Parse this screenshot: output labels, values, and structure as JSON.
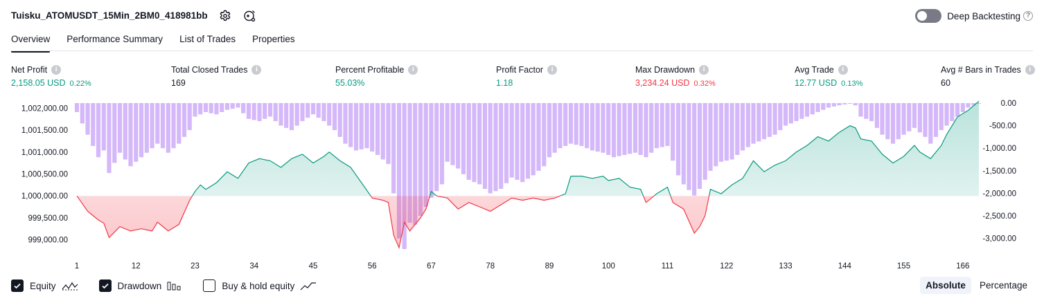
{
  "header": {
    "strategy_name": "Tuisku_ATOMUSDT_15Min_2BM0_418981bb",
    "deep_backtesting_label": "Deep Backtesting",
    "help_glyph": "?"
  },
  "tabs": [
    {
      "label": "Overview",
      "active": true
    },
    {
      "label": "Performance Summary",
      "active": false
    },
    {
      "label": "List of Trades",
      "active": false
    },
    {
      "label": "Properties",
      "active": false
    }
  ],
  "metrics": [
    {
      "label": "Net Profit",
      "value": "2,158.05 USD",
      "pct": "0.22%",
      "color": "#089981"
    },
    {
      "label": "Total Closed Trades",
      "value": "169",
      "pct": "",
      "color": "#131722"
    },
    {
      "label": "Percent Profitable",
      "value": "55.03%",
      "pct": "",
      "color": "#089981"
    },
    {
      "label": "Profit Factor",
      "value": "1.18",
      "pct": "",
      "color": "#089981"
    },
    {
      "label": "Max Drawdown",
      "value": "3,234.24 USD",
      "pct": "0.32%",
      "color": "#f23645"
    },
    {
      "label": "Avg Trade",
      "value": "12.77 USD",
      "pct": "0.13%",
      "color": "#089981"
    },
    {
      "label": "Avg # Bars in Trades",
      "value": "60",
      "pct": "",
      "color": "#131722"
    }
  ],
  "info_glyph": "i",
  "chart_data": {
    "type": "line",
    "x_ticks": [
      "1",
      "12",
      "23",
      "34",
      "45",
      "56",
      "67",
      "78",
      "89",
      "100",
      "111",
      "122",
      "133",
      "144",
      "155",
      "166"
    ],
    "x_range": [
      1,
      169
    ],
    "left_axis": {
      "ticks": [
        "1,002,000.00",
        "1,001,500.00",
        "1,001,000.00",
        "1,000,500.00",
        "1,000,000.00",
        "999,500.00",
        "999,000.00"
      ],
      "range": [
        998820,
        1002100
      ],
      "baseline": 1000000
    },
    "right_axis": {
      "ticks": [
        "0.00",
        "-500.00",
        "-1,000.00",
        "-1,500.00",
        "-2,000.00",
        "-2,500.00",
        "-3,000.00"
      ],
      "range": [
        -3234.24,
        0
      ]
    },
    "equity": {
      "name": "Equity",
      "positive_color": "#089981",
      "negative_color": "#f23645",
      "anchors": [
        [
          1,
          1000000
        ],
        [
          3,
          999650
        ],
        [
          5,
          999450
        ],
        [
          6,
          999380
        ],
        [
          7,
          999050
        ],
        [
          9,
          999300
        ],
        [
          11,
          999200
        ],
        [
          13,
          999250
        ],
        [
          15,
          999200
        ],
        [
          16,
          999400
        ],
        [
          18,
          999200
        ],
        [
          20,
          999350
        ],
        [
          22,
          999900
        ],
        [
          23,
          1000100
        ],
        [
          24,
          1000250
        ],
        [
          25,
          1000150
        ],
        [
          27,
          1000300
        ],
        [
          29,
          1000550
        ],
        [
          31,
          1000400
        ],
        [
          33,
          1000750
        ],
        [
          35,
          1000850
        ],
        [
          37,
          1000800
        ],
        [
          39,
          1000650
        ],
        [
          41,
          1000850
        ],
        [
          43,
          1000950
        ],
        [
          45,
          1000750
        ],
        [
          47,
          1000900
        ],
        [
          48,
          1001000
        ],
        [
          50,
          1000800
        ],
        [
          52,
          1000650
        ],
        [
          54,
          1000300
        ],
        [
          56,
          999950
        ],
        [
          58,
          999900
        ],
        [
          59,
          999850
        ],
        [
          60,
          999100
        ],
        [
          61,
          998820
        ],
        [
          62,
          999400
        ],
        [
          63,
          999200
        ],
        [
          65,
          999500
        ],
        [
          66,
          999700
        ],
        [
          67,
          1000100
        ],
        [
          68,
          1000000
        ],
        [
          70,
          999950
        ],
        [
          72,
          999700
        ],
        [
          74,
          999850
        ],
        [
          76,
          999750
        ],
        [
          78,
          999650
        ],
        [
          80,
          999800
        ],
        [
          82,
          999950
        ],
        [
          84,
          999900
        ],
        [
          86,
          999950
        ],
        [
          88,
          999900
        ],
        [
          90,
          999950
        ],
        [
          92,
          1000050
        ],
        [
          93,
          1000450
        ],
        [
          95,
          1000450
        ],
        [
          97,
          1000400
        ],
        [
          99,
          1000450
        ],
        [
          100,
          1000350
        ],
        [
          102,
          1000400
        ],
        [
          104,
          1000200
        ],
        [
          106,
          1000150
        ],
        [
          107,
          999850
        ],
        [
          109,
          1000050
        ],
        [
          111,
          1000200
        ],
        [
          112,
          999850
        ],
        [
          114,
          999700
        ],
        [
          116,
          999150
        ],
        [
          117,
          999300
        ],
        [
          118,
          999550
        ],
        [
          119,
          1000150
        ],
        [
          121,
          1000050
        ],
        [
          123,
          1000250
        ],
        [
          125,
          1000400
        ],
        [
          127,
          1000800
        ],
        [
          129,
          1000550
        ],
        [
          131,
          1000700
        ],
        [
          133,
          1000800
        ],
        [
          135,
          1001000
        ],
        [
          137,
          1001150
        ],
        [
          139,
          1001350
        ],
        [
          141,
          1001250
        ],
        [
          143,
          1001450
        ],
        [
          145,
          1001600
        ],
        [
          146,
          1001550
        ],
        [
          147,
          1001300
        ],
        [
          149,
          1001250
        ],
        [
          151,
          1000950
        ],
        [
          153,
          1000750
        ],
        [
          155,
          1000900
        ],
        [
          157,
          1001150
        ],
        [
          158,
          1001000
        ],
        [
          160,
          1000850
        ],
        [
          162,
          1001150
        ],
        [
          163,
          1001400
        ],
        [
          165,
          1001800
        ],
        [
          167,
          1001950
        ],
        [
          169,
          1002158
        ]
      ]
    },
    "drawdown": {
      "name": "Drawdown",
      "color": "#c49cf6",
      "anchors": [
        [
          1,
          -200
        ],
        [
          3,
          -700
        ],
        [
          5,
          -1200
        ],
        [
          6,
          -1050
        ],
        [
          7,
          -1550
        ],
        [
          9,
          -1100
        ],
        [
          11,
          -1400
        ],
        [
          13,
          -1200
        ],
        [
          16,
          -900
        ],
        [
          18,
          -1100
        ],
        [
          20,
          -900
        ],
        [
          22,
          -600
        ],
        [
          23,
          -300
        ],
        [
          25,
          -200
        ],
        [
          27,
          -250
        ],
        [
          29,
          -150
        ],
        [
          31,
          -100
        ],
        [
          33,
          -350
        ],
        [
          35,
          -400
        ],
        [
          37,
          -300
        ],
        [
          39,
          -500
        ],
        [
          41,
          -600
        ],
        [
          43,
          -400
        ],
        [
          45,
          -250
        ],
        [
          47,
          -400
        ],
        [
          49,
          -600
        ],
        [
          51,
          -900
        ],
        [
          53,
          -1050
        ],
        [
          55,
          -1000
        ],
        [
          57,
          -1150
        ],
        [
          59,
          -1350
        ],
        [
          60,
          -2000
        ],
        [
          61,
          -3000
        ],
        [
          62,
          -3234
        ],
        [
          63,
          -2650
        ],
        [
          64,
          -2700
        ],
        [
          66,
          -2300
        ],
        [
          67,
          -2100
        ],
        [
          69,
          -1800
        ],
        [
          70,
          -1300
        ],
        [
          72,
          -1450
        ],
        [
          74,
          -1700
        ],
        [
          76,
          -1800
        ],
        [
          78,
          -2000
        ],
        [
          80,
          -1900
        ],
        [
          82,
          -1650
        ],
        [
          84,
          -1750
        ],
        [
          86,
          -1600
        ],
        [
          88,
          -1400
        ],
        [
          89,
          -1200
        ],
        [
          91,
          -1000
        ],
        [
          93,
          -900
        ],
        [
          95,
          -950
        ],
        [
          97,
          -1050
        ],
        [
          99,
          -1100
        ],
        [
          101,
          -1200
        ],
        [
          103,
          -1150
        ],
        [
          105,
          -1100
        ],
        [
          107,
          -1200
        ],
        [
          109,
          -1000
        ],
        [
          111,
          -950
        ],
        [
          113,
          -1600
        ],
        [
          114,
          -1800
        ],
        [
          116,
          -2050
        ],
        [
          117,
          -1900
        ],
        [
          119,
          -1500
        ],
        [
          121,
          -1300
        ],
        [
          123,
          -1250
        ],
        [
          125,
          -1050
        ],
        [
          127,
          -900
        ],
        [
          129,
          -800
        ],
        [
          131,
          -700
        ],
        [
          133,
          -500
        ],
        [
          135,
          -400
        ],
        [
          137,
          -300
        ],
        [
          139,
          -200
        ],
        [
          141,
          -100
        ],
        [
          143,
          -50
        ],
        [
          145,
          -10
        ],
        [
          146,
          -50
        ],
        [
          147,
          -300
        ],
        [
          149,
          -400
        ],
        [
          151,
          -700
        ],
        [
          153,
          -900
        ],
        [
          155,
          -700
        ],
        [
          157,
          -550
        ],
        [
          159,
          -750
        ],
        [
          160,
          -900
        ],
        [
          162,
          -600
        ],
        [
          163,
          -500
        ],
        [
          165,
          -300
        ],
        [
          167,
          -100
        ],
        [
          169,
          0
        ]
      ]
    }
  },
  "legend": [
    {
      "label": "Equity",
      "checked": true,
      "icon": "equity-line-icon"
    },
    {
      "label": "Drawdown",
      "checked": true,
      "icon": "drawdown-bars-icon"
    },
    {
      "label": "Buy & hold equity",
      "checked": false,
      "icon": "buyhold-line-icon"
    }
  ],
  "scale_switch": [
    {
      "label": "Absolute",
      "active": true
    },
    {
      "label": "Percentage",
      "active": false
    }
  ]
}
